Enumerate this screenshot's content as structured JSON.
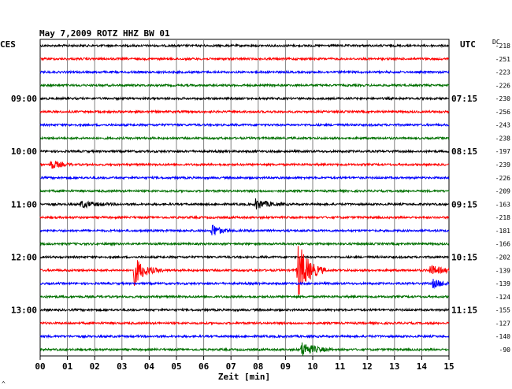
{
  "header": {
    "title": "May 7,2009   ROTZ HHZ BW 01",
    "left_zone": "CES",
    "right_zone": "UTC",
    "dc_label": "DC"
  },
  "footer": {
    "xlabel": "Zeit [min]",
    "corner_mark": "^"
  },
  "chart_data": {
    "type": "line",
    "subtype": "helicorder",
    "title": "May 7,2009   ROTZ HHZ BW 01",
    "xlabel": "Zeit [min]",
    "xlim": [
      0,
      15
    ],
    "x_ticks": [
      "00",
      "01",
      "02",
      "03",
      "04",
      "05",
      "06",
      "07",
      "08",
      "09",
      "10",
      "11",
      "12",
      "13",
      "14",
      "15"
    ],
    "grid": true,
    "left_time_labels": [
      {
        "row": 4,
        "label": "09:00"
      },
      {
        "row": 8,
        "label": "10:00"
      },
      {
        "row": 12,
        "label": "11:00"
      },
      {
        "row": 16,
        "label": "12:00"
      },
      {
        "row": 20,
        "label": "13:00"
      }
    ],
    "right_time_labels": [
      {
        "row": 4,
        "label": "07:15"
      },
      {
        "row": 8,
        "label": "08:15"
      },
      {
        "row": 12,
        "label": "09:15"
      },
      {
        "row": 16,
        "label": "10:15"
      },
      {
        "row": 20,
        "label": "11:15"
      }
    ],
    "trace_colors": [
      "#000000",
      "#ff0000",
      "#0000ff",
      "#007000"
    ],
    "series": [
      {
        "row": 0,
        "dc": -218
      },
      {
        "row": 1,
        "dc": -251
      },
      {
        "row": 2,
        "dc": -223
      },
      {
        "row": 3,
        "dc": -226
      },
      {
        "row": 4,
        "dc": -230
      },
      {
        "row": 5,
        "dc": -256
      },
      {
        "row": 6,
        "dc": -243
      },
      {
        "row": 7,
        "dc": -238
      },
      {
        "row": 8,
        "dc": -197
      },
      {
        "row": 9,
        "dc": -239
      },
      {
        "row": 10,
        "dc": -226
      },
      {
        "row": 11,
        "dc": -209
      },
      {
        "row": 12,
        "dc": -163
      },
      {
        "row": 13,
        "dc": -218
      },
      {
        "row": 14,
        "dc": -181
      },
      {
        "row": 15,
        "dc": -166
      },
      {
        "row": 16,
        "dc": -202
      },
      {
        "row": 17,
        "dc": -139
      },
      {
        "row": 18,
        "dc": -139
      },
      {
        "row": 19,
        "dc": -124
      },
      {
        "row": 20,
        "dc": -155
      },
      {
        "row": 21,
        "dc": -127
      },
      {
        "row": 22,
        "dc": -140
      },
      {
        "row": 23,
        "dc": -90
      }
    ],
    "events": [
      {
        "row": 9,
        "minute": 0.4,
        "amplitude": 0.35,
        "duration": 0.3
      },
      {
        "row": 12,
        "minute": 1.5,
        "amplitude": 0.25,
        "duration": 0.5
      },
      {
        "row": 12,
        "minute": 7.9,
        "amplitude": 0.4,
        "duration": 0.4
      },
      {
        "row": 14,
        "minute": 6.3,
        "amplitude": 0.55,
        "duration": 0.25
      },
      {
        "row": 17,
        "minute": 3.45,
        "amplitude": 1.1,
        "duration": 0.35
      },
      {
        "row": 17,
        "minute": 9.45,
        "amplitude": 2.3,
        "duration": 0.35
      },
      {
        "row": 17,
        "minute": 14.3,
        "amplitude": 0.35,
        "duration": 0.5
      },
      {
        "row": 18,
        "minute": 14.4,
        "amplitude": 0.3,
        "duration": 0.4
      },
      {
        "row": 23,
        "minute": 9.6,
        "amplitude": 0.6,
        "duration": 0.4
      }
    ]
  }
}
